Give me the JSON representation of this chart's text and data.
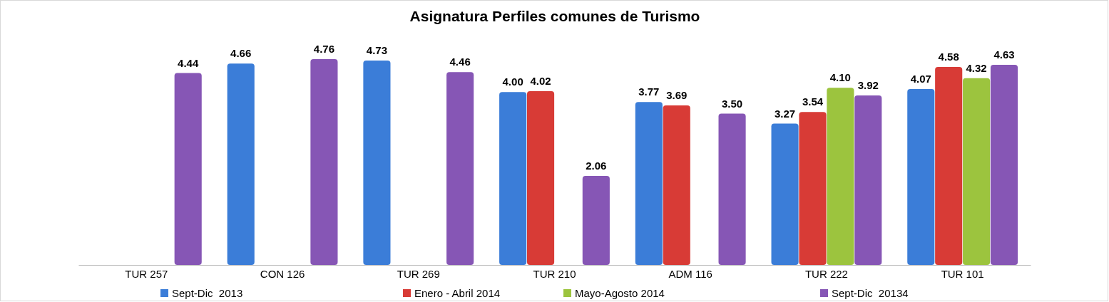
{
  "chart_data": {
    "type": "bar",
    "title": "Asignatura Perfiles comunes de Turismo",
    "categories": [
      "TUR 257",
      "CON 126",
      "TUR 269",
      "TUR 210",
      "ADM 116",
      "TUR 222",
      "TUR 101"
    ],
    "series": [
      {
        "name": "Sept-Dic  2013",
        "color": "#3b7dd8",
        "values": [
          null,
          4.66,
          4.73,
          4.0,
          3.77,
          3.27,
          4.07
        ],
        "value_labels": [
          null,
          "4.66",
          "4.73",
          "4.00",
          "3.77",
          "3.27",
          "4.07"
        ]
      },
      {
        "name": "Enero - Abril 2014",
        "color": "#d83b36",
        "values": [
          null,
          null,
          null,
          4.02,
          3.69,
          3.54,
          4.58
        ],
        "value_labels": [
          null,
          null,
          null,
          "4.02",
          "3.69",
          "3.54",
          "4.58"
        ]
      },
      {
        "name": "Mayo-Agosto 2014",
        "color": "#9cc43e",
        "values": [
          null,
          null,
          null,
          null,
          null,
          4.1,
          4.32
        ],
        "value_labels": [
          null,
          null,
          null,
          null,
          null,
          "4.10",
          "4.32"
        ]
      },
      {
        "name": "Sept-Dic  20134",
        "color": "#8656b5",
        "values": [
          4.44,
          4.76,
          4.46,
          2.06,
          3.5,
          3.92,
          4.63
        ],
        "value_labels": [
          "4.44",
          "4.76",
          "4.46",
          "2.06",
          "3.50",
          "3.92",
          "4.63"
        ]
      }
    ],
    "legend": "bottom"
  }
}
